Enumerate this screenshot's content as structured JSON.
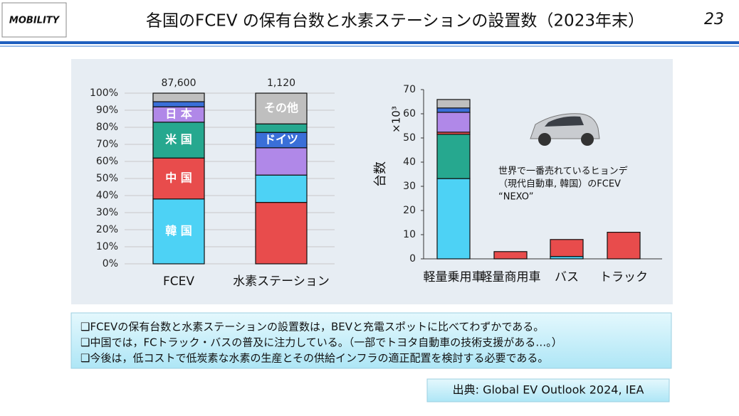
{
  "header": {
    "logo": "MOBILITY",
    "title": "各国のFCEV の保有台数と水素ステーションの設置数（2023年末）",
    "page": "23"
  },
  "chart_data": [
    {
      "type": "stacked100",
      "ylim": [
        0,
        100
      ],
      "yticks": [
        {
          "value": 0,
          "label": "0%"
        },
        {
          "value": 10,
          "label": "10%"
        },
        {
          "value": 20,
          "label": "20%"
        },
        {
          "value": 30,
          "label": "30%"
        },
        {
          "value": 40,
          "label": "40%"
        },
        {
          "value": 50,
          "label": "50%"
        },
        {
          "value": 60,
          "label": "60%"
        },
        {
          "value": 70,
          "label": "70%"
        },
        {
          "value": 80,
          "label": "80%"
        },
        {
          "value": 90,
          "label": "90%"
        },
        {
          "value": 100,
          "label": "100%"
        }
      ],
      "grid": true,
      "bars": [
        {
          "category": "FCEV",
          "total_label": "87,600",
          "segments": [
            {
              "name": "韓 国",
              "color": "#4dd2f5",
              "value": 38
            },
            {
              "name": "中 国",
              "color": "#e84c4c",
              "value": 24
            },
            {
              "name": "米 国",
              "color": "#26a88f",
              "value": 21
            },
            {
              "name": "日 本",
              "color": "#b088e8",
              "value": 9
            },
            {
              "color": "#3a6fd8",
              "value": 3
            },
            {
              "color": "#bfbfbf",
              "value": 5
            }
          ]
        },
        {
          "category": "水素ステーション",
          "total_label": "1,120",
          "segments": [
            {
              "color": "#e84c4c",
              "value": 36
            },
            {
              "color": "#4dd2f5",
              "value": 16
            },
            {
              "color": "#b088e8",
              "value": 16
            },
            {
              "name": "ドイツ",
              "color": "#3a6fd8",
              "value": 9
            },
            {
              "color": "#26a88f",
              "value": 5
            },
            {
              "name": "その他",
              "color": "#bfbfbf",
              "value": 18
            }
          ]
        }
      ]
    },
    {
      "type": "stacked",
      "y_label": "台数",
      "y_unit": "×10³",
      "categories": [
        "軽量乗用車",
        "軽量商用車",
        "バス",
        "トラック"
      ],
      "series": [
        {
          "color": "#4dd2f5",
          "values": [
            33.2,
            null,
            1,
            null
          ]
        },
        {
          "color": "#26a88f",
          "values": [
            18.3,
            null,
            null,
            null
          ]
        },
        {
          "color": "#e84c4c",
          "values": [
            0.9,
            3,
            7,
            11
          ]
        },
        {
          "color": "#b088e8",
          "values": [
            8.2,
            null,
            null,
            null
          ]
        },
        {
          "color": "#3a6fd8",
          "values": [
            1.8,
            null,
            null,
            null
          ]
        },
        {
          "color": "#bfbfbf",
          "values": [
            3.5,
            null,
            null,
            null
          ]
        }
      ],
      "ylim": [
        0,
        70
      ],
      "yticks": [
        0,
        10,
        20,
        30,
        40,
        50,
        60,
        70
      ],
      "annotation": [
        "世界で一番売れているヒョンデ",
        "（現代自動車, 韓国）のFCEV",
        "“NEXO”"
      ]
    }
  ],
  "bullets": [
    "❑FCEVの保有台数と水素ステーションの設置数は，BEVと充電スポットに比べてわずかである。",
    "❑中国では，FCトラック・バスの普及に注力している。（一部でトヨタ自動車の技術支援がある…。）",
    "❑今後は，低コストで低炭素な水素の生産とその供給インフラの適正配置を検討する必要である。"
  ],
  "source": "出典: Global EV Outlook 2024, IEA"
}
